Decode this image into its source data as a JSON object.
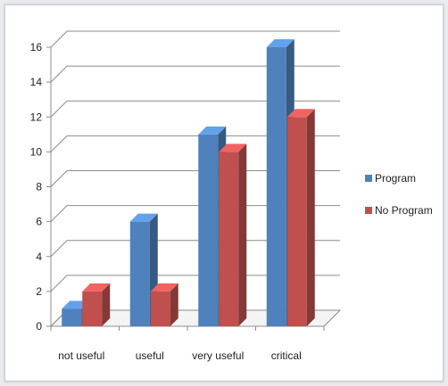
{
  "chart_data": {
    "type": "bar",
    "categories": [
      "not useful",
      "useful",
      "very useful",
      "critical"
    ],
    "series": [
      {
        "name": "Program",
        "values": [
          1,
          6,
          11,
          16
        ],
        "color": "#4f81bd"
      },
      {
        "name": "No Program",
        "values": [
          2,
          2,
          10,
          12
        ],
        "color": "#c0504d"
      }
    ],
    "ylim": [
      0,
      16
    ],
    "yticks": [
      0,
      2,
      4,
      6,
      8,
      10,
      12,
      14,
      16
    ],
    "grid": true,
    "legend_position": "right",
    "three_d": true
  }
}
